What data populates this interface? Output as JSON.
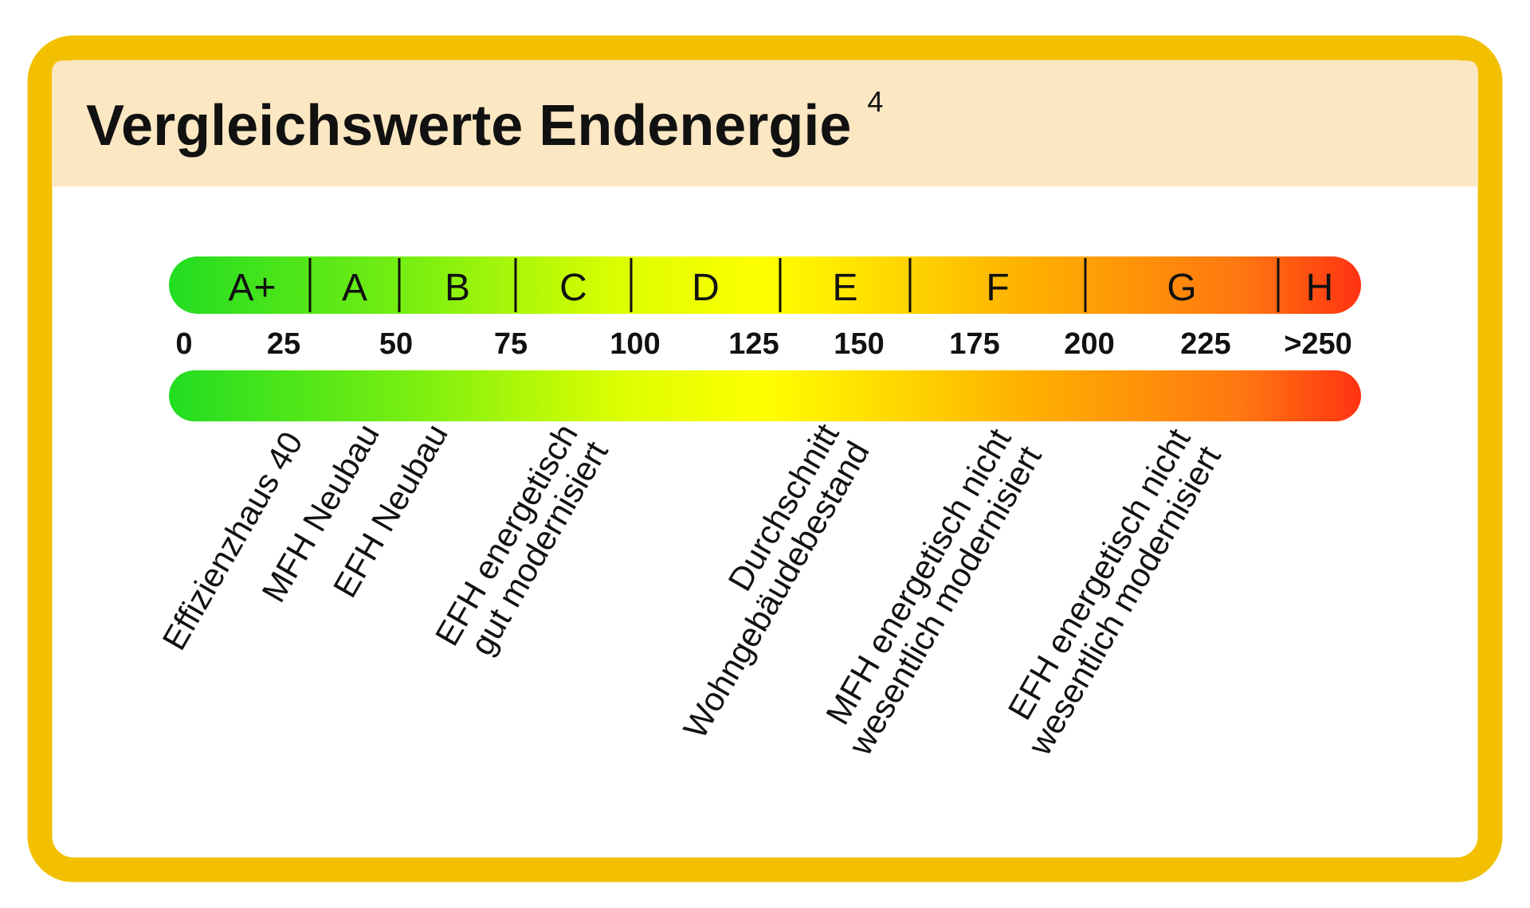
{
  "header": {
    "title": "Vergleichswerte Endenergie",
    "footnote": "4"
  },
  "scale": {
    "classes": [
      "A+",
      "A",
      "B",
      "C",
      "D",
      "E",
      "F",
      "G",
      "H"
    ],
    "ticks": [
      "0",
      "25",
      "50",
      "75",
      "100",
      "125",
      "150",
      "175",
      "200",
      "225",
      ">250"
    ]
  },
  "markers": [
    {
      "lines": [
        "Effizienzhaus 40"
      ]
    },
    {
      "lines": [
        "MFH Neubau"
      ]
    },
    {
      "lines": [
        "EFH Neubau"
      ]
    },
    {
      "lines": [
        "EFH energetisch",
        "gut modernisiert"
      ]
    },
    {
      "lines": [
        "Durchschnitt",
        "Wohngebäudebestand"
      ]
    },
    {
      "lines": [
        "MFH energetisch nicht",
        "wesentlich modernisiert"
      ]
    },
    {
      "lines": [
        "EFH energetisch nicht",
        "wesentlich modernisiert"
      ]
    }
  ]
}
